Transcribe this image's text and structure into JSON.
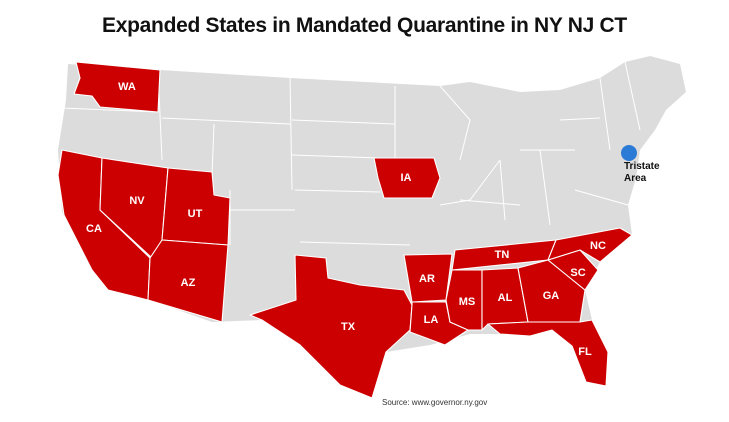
{
  "title": "Expanded States in Mandated Quarantine in NY NJ CT",
  "source": "Source: www.governor.ny.gov",
  "colors": {
    "highlight": "#cc0000",
    "other": "#dcdcdd",
    "marker": "#2b7bd6"
  },
  "highlighted_states": [
    "WA",
    "CA",
    "NV",
    "UT",
    "AZ",
    "TX",
    "IA",
    "AR",
    "LA",
    "MS",
    "AL",
    "TN",
    "GA",
    "SC",
    "NC",
    "FL"
  ],
  "tristate": {
    "line1": "Tristate",
    "line2": "Area"
  }
}
